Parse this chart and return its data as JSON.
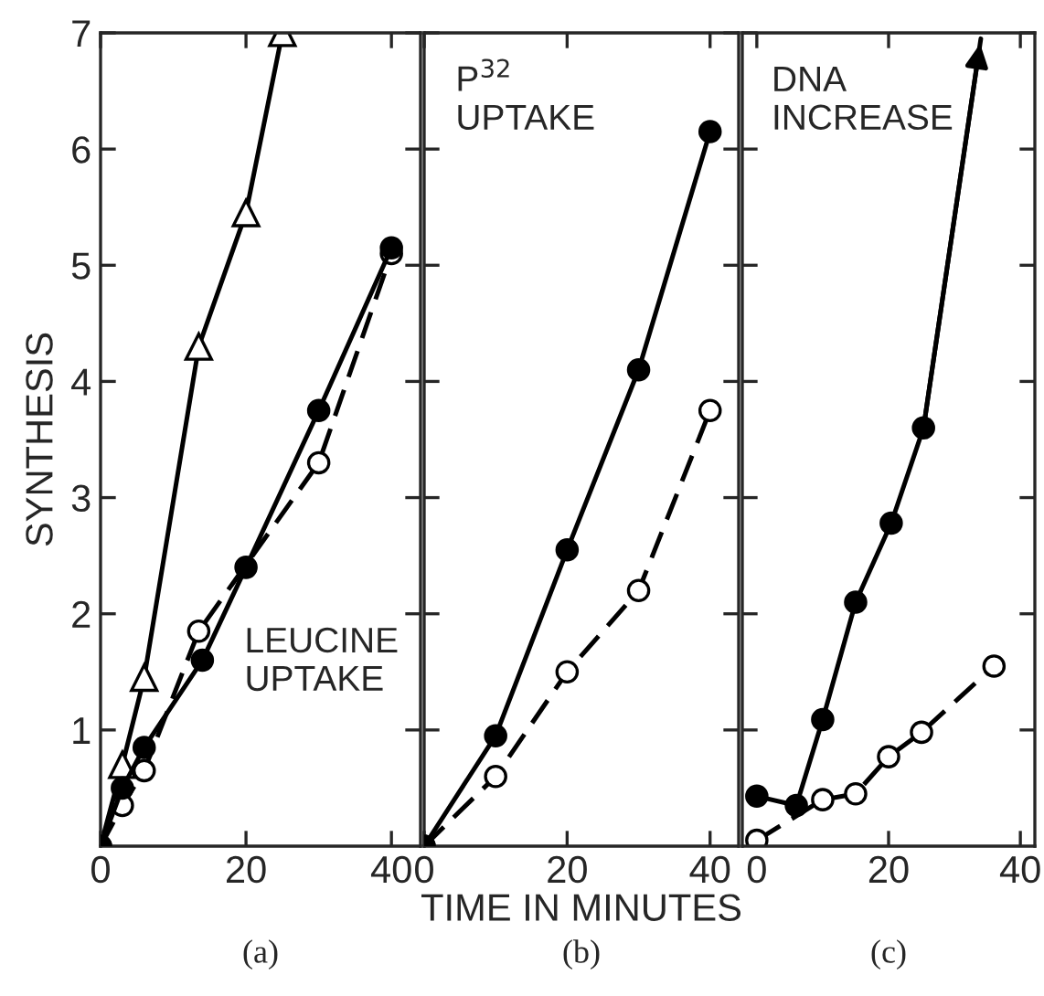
{
  "chart_data": [
    {
      "type": "line",
      "ylabel": "SYNTHESIS",
      "xlim": [
        0,
        44
      ],
      "xticks": [
        0,
        20,
        40
      ],
      "ylim": [
        0,
        7
      ],
      "yticks": [
        1,
        2,
        3,
        4,
        5,
        6,
        7
      ],
      "grid": false,
      "legend": false,
      "annotations": [
        "LEUCINE\nUPTAKE",
        "(a)"
      ],
      "series": [
        {
          "color": "#000000",
          "marker": "circle",
          "line_style": "solid",
          "x": [
            0,
            3,
            6,
            14,
            20,
            30,
            40
          ],
          "values": [
            0,
            0.5,
            0.85,
            1.6,
            2.4,
            3.75,
            5.15
          ]
        },
        {
          "color": "#000000",
          "marker": "circle",
          "line_style": "dashed",
          "x": [
            0,
            3,
            6,
            13.5,
            30,
            40
          ],
          "values": [
            0,
            0.35,
            0.65,
            1.85,
            3.3,
            5.1
          ]
        },
        {
          "color": "#000000",
          "marker": "triangle",
          "line_style": "solid",
          "x": [
            0,
            3,
            6,
            13.5,
            20,
            25
          ],
          "values": [
            0,
            0.7,
            1.45,
            4.3,
            5.45,
            7
          ]
        }
      ]
    },
    {
      "type": "line",
      "xlabel": "TIME IN MINUTES",
      "xlim": [
        0,
        44
      ],
      "xticks": [
        0,
        20,
        40
      ],
      "ylim": [
        0,
        7
      ],
      "yticks": [
        1,
        2,
        3,
        4,
        5,
        6,
        7
      ],
      "tick_labels": "x",
      "grid": false,
      "legend": false,
      "annotations": [
        "P$^{32}$\nUPTAKE",
        "(b)"
      ],
      "series": [
        {
          "color": "#000000",
          "marker": "circle",
          "line_style": "solid",
          "x": [
            0,
            10,
            20,
            30,
            40
          ],
          "values": [
            0,
            0.95,
            2.55,
            4.1,
            6.15
          ]
        },
        {
          "color": "#000000",
          "marker": "circle",
          "line_style": "dashed",
          "x": [
            0,
            10,
            20,
            30,
            40
          ],
          "values": [
            0,
            0.6,
            1.5,
            2.2,
            3.75
          ]
        }
      ]
    },
    {
      "type": "line",
      "xlim": [
        -2.2,
        42.2
      ],
      "xticks": [
        0,
        20,
        40
      ],
      "ylim": [
        0,
        7
      ],
      "yticks": [
        1,
        2,
        3,
        4,
        5,
        6,
        7
      ],
      "tick_labels": "x",
      "grid": false,
      "legend": false,
      "annotations": [
        "DNA\nINCREASE",
        "(c)"
      ],
      "series": [
        {
          "color": "#000000",
          "marker": "circle",
          "line_style": "solid",
          "x": [
            0,
            6,
            10,
            15,
            20.4,
            25.3,
            34
          ],
          "values": [
            0.43,
            0.35,
            1.09,
            2.1,
            2.78,
            3.6,
            6.95
          ]
        },
        {
          "color": "#000000",
          "marker": "circle",
          "line_style": "dashed",
          "x": [
            0,
            10,
            15,
            20,
            25,
            36
          ],
          "values": [
            0.05,
            0.4,
            0.45,
            0.77,
            0.98,
            1.55
          ]
        }
      ]
    }
  ]
}
